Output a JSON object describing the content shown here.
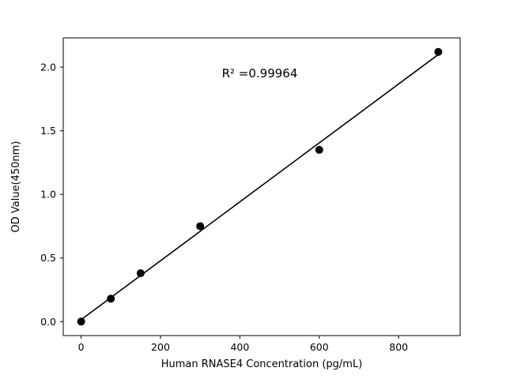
{
  "chart_data": {
    "type": "scatter",
    "title": "",
    "xlabel": "Human RNASE4 Concentration (pg/mL)",
    "ylabel": "OD Value(450nm)",
    "x": [
      0,
      75,
      150,
      300,
      600,
      900
    ],
    "y": [
      0.0,
      0.18,
      0.38,
      0.75,
      1.35,
      2.12
    ],
    "fit_line": true,
    "annotation": {
      "text": "R² =0.99964",
      "x": 450,
      "y": 1.92
    },
    "xlim": [
      -45,
      955
    ],
    "ylim": [
      -0.11,
      2.23
    ],
    "x_ticks": [
      0,
      200,
      400,
      600,
      800
    ],
    "y_ticks": [
      0.0,
      0.5,
      1.0,
      1.5,
      2.0
    ],
    "grid": false,
    "legend": "none",
    "marker_color": "#000000",
    "line_color": "#000000",
    "background_color": "#ffffff"
  }
}
